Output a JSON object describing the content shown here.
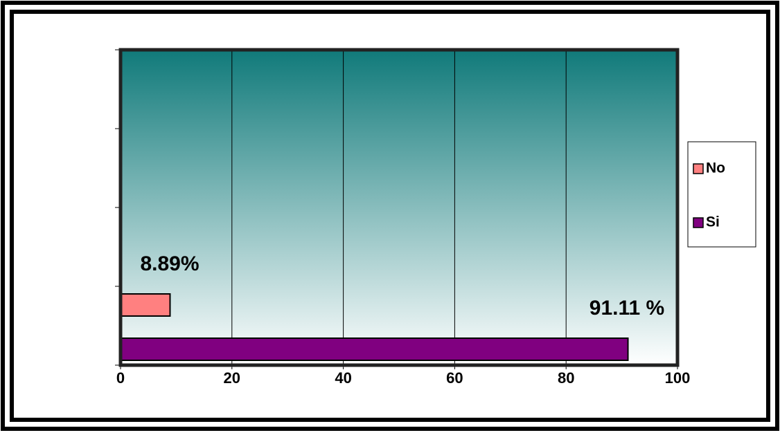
{
  "chart_data": {
    "type": "bar",
    "orientation": "horizontal",
    "categories": [
      null
    ],
    "series": [
      {
        "name": "No",
        "color": "#ff8080",
        "values": [
          8.89
        ],
        "value_labels": [
          "8.89%"
        ]
      },
      {
        "name": "Si",
        "color": "#800080",
        "values": [
          91.11
        ],
        "value_labels": [
          "91.11 %"
        ]
      }
    ],
    "xlim": [
      0,
      100
    ],
    "xticks": [
      0,
      20,
      40,
      60,
      80,
      100
    ],
    "grid": true,
    "legend": "right"
  }
}
